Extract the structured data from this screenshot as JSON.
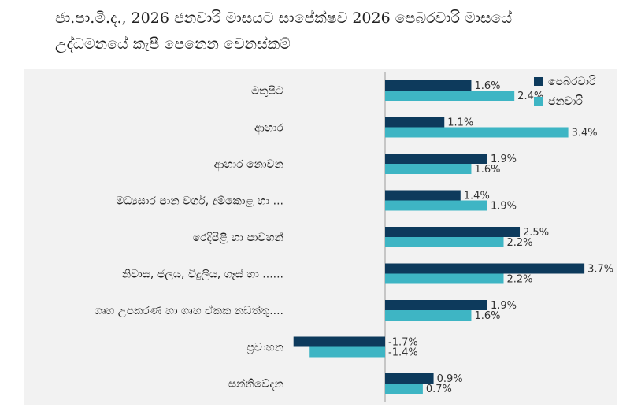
{
  "title": {
    "line1": "ජා.පා.මි.ද., 2026 ජනවාරි මාසයට සාපේක්ෂව 2026 පෙබරවාරි මාසයේ",
    "line2": "උද්ධමනයේ කැපී පෙනෙන වෙනස්කම්"
  },
  "colors": {
    "series1": "#0d3a5c",
    "series2": "#3eb5c4"
  },
  "chart_data": {
    "type": "bar",
    "orientation": "horizontal",
    "title": "ජා.පා.මි.ද., 2026 ජනවාරි මාසයට සාපේක්ෂව 2026 පෙබරවාරි මාසයේ උද්ධමනයේ කැපී පෙනෙන වෙනස්කම්",
    "categories": [
      "මතුපිට",
      "ආහාර",
      "ආහාර නොවන",
      "මධ්‍යසාර පාන වර්ග, දුම්කොළ හා ...",
      "රෙදිපිළි හා පාවහන්",
      "නිවාස, ජලය, විදුලිය, ගෑස් හා ......",
      "ගෘහ උපකරණ හා ගෘහ ඒකක නඩත්තු....",
      "ප්‍රවාහන",
      "සන්නිවේදන"
    ],
    "series": [
      {
        "name": "පෙබරවාරි",
        "values": [
          1.6,
          1.1,
          1.9,
          1.4,
          2.5,
          3.7,
          1.9,
          -1.7,
          0.9
        ]
      },
      {
        "name": "ජනවාරි",
        "values": [
          2.4,
          3.4,
          1.6,
          1.9,
          2.2,
          2.2,
          1.6,
          -1.4,
          0.7
        ]
      }
    ],
    "value_suffix": "%",
    "xlim": [
      -2.2,
      4.4
    ],
    "legend_position": "top-right",
    "grid": false
  }
}
